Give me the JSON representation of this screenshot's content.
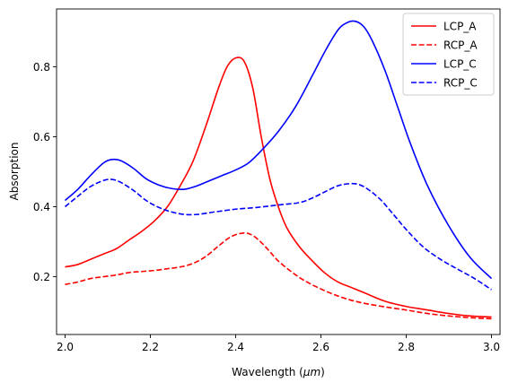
{
  "chart_data": {
    "type": "line",
    "title": "",
    "xlabel": "Wavelength (",
    "xlabel_unit": "μm",
    "xlabel_close": ")",
    "ylabel": "Absorption",
    "xlim": [
      1.98,
      3.02
    ],
    "ylim": [
      0.035,
      0.965
    ],
    "xticks": [
      2.0,
      2.2,
      2.4,
      2.6,
      2.8,
      3.0
    ],
    "xtick_labels": [
      "2.0",
      "2.2",
      "2.4",
      "2.6",
      "2.8",
      "3.0"
    ],
    "yticks": [
      0.2,
      0.4,
      0.6,
      0.8
    ],
    "ytick_labels": [
      "0.2",
      "0.4",
      "0.6",
      "0.8"
    ],
    "grid": false,
    "legend_position": "top-right",
    "series": [
      {
        "name": "LCP_A",
        "color": "#ff0000",
        "dash": "solid",
        "x": [
          2.0,
          2.03,
          2.06,
          2.09,
          2.12,
          2.15,
          2.18,
          2.21,
          2.24,
          2.27,
          2.3,
          2.33,
          2.36,
          2.38,
          2.4,
          2.42,
          2.44,
          2.46,
          2.48,
          2.5,
          2.52,
          2.55,
          2.58,
          2.61,
          2.64,
          2.67,
          2.7,
          2.75,
          2.8,
          2.85,
          2.9,
          2.95,
          3.0
        ],
        "y": [
          0.228,
          0.235,
          0.25,
          0.265,
          0.28,
          0.305,
          0.33,
          0.36,
          0.4,
          0.46,
          0.53,
          0.63,
          0.74,
          0.8,
          0.825,
          0.815,
          0.74,
          0.6,
          0.48,
          0.4,
          0.34,
          0.285,
          0.245,
          0.21,
          0.185,
          0.17,
          0.155,
          0.13,
          0.115,
          0.105,
          0.095,
          0.088,
          0.085
        ]
      },
      {
        "name": "RCP_A",
        "color": "#ff0000",
        "dash": "dashed",
        "x": [
          2.0,
          2.03,
          2.06,
          2.09,
          2.12,
          2.15,
          2.18,
          2.21,
          2.24,
          2.27,
          2.3,
          2.33,
          2.36,
          2.39,
          2.42,
          2.44,
          2.46,
          2.48,
          2.5,
          2.53,
          2.56,
          2.6,
          2.64,
          2.68,
          2.72,
          2.76,
          2.8,
          2.85,
          2.9,
          2.95,
          3.0
        ],
        "y": [
          0.178,
          0.185,
          0.195,
          0.2,
          0.205,
          0.212,
          0.215,
          0.218,
          0.223,
          0.228,
          0.238,
          0.258,
          0.288,
          0.315,
          0.325,
          0.318,
          0.298,
          0.272,
          0.245,
          0.215,
          0.19,
          0.165,
          0.145,
          0.13,
          0.12,
          0.112,
          0.105,
          0.095,
          0.088,
          0.083,
          0.08
        ]
      },
      {
        "name": "LCP_C",
        "color": "#0000ff",
        "dash": "solid",
        "x": [
          2.0,
          2.03,
          2.06,
          2.09,
          2.11,
          2.13,
          2.16,
          2.19,
          2.22,
          2.25,
          2.28,
          2.31,
          2.34,
          2.37,
          2.4,
          2.43,
          2.46,
          2.5,
          2.54,
          2.58,
          2.61,
          2.64,
          2.66,
          2.68,
          2.7,
          2.72,
          2.75,
          2.78,
          2.81,
          2.85,
          2.9,
          2.95,
          3.0
        ],
        "y": [
          0.418,
          0.45,
          0.49,
          0.525,
          0.535,
          0.532,
          0.51,
          0.48,
          0.462,
          0.452,
          0.45,
          0.46,
          0.475,
          0.49,
          0.505,
          0.525,
          0.56,
          0.615,
          0.685,
          0.775,
          0.845,
          0.905,
          0.925,
          0.93,
          0.915,
          0.875,
          0.79,
          0.685,
          0.58,
          0.46,
          0.345,
          0.255,
          0.195
        ]
      },
      {
        "name": "RCP_C",
        "color": "#0000ff",
        "dash": "dashed",
        "x": [
          2.0,
          2.03,
          2.06,
          2.09,
          2.11,
          2.13,
          2.16,
          2.19,
          2.22,
          2.25,
          2.28,
          2.31,
          2.35,
          2.4,
          2.45,
          2.5,
          2.55,
          2.58,
          2.61,
          2.64,
          2.67,
          2.69,
          2.71,
          2.74,
          2.77,
          2.8,
          2.84,
          2.88,
          2.92,
          2.96,
          3.0
        ],
        "y": [
          0.4,
          0.43,
          0.458,
          0.475,
          0.478,
          0.47,
          0.447,
          0.418,
          0.398,
          0.385,
          0.378,
          0.378,
          0.385,
          0.393,
          0.398,
          0.405,
          0.412,
          0.425,
          0.443,
          0.46,
          0.466,
          0.463,
          0.45,
          0.42,
          0.378,
          0.335,
          0.285,
          0.25,
          0.222,
          0.195,
          0.163
        ]
      }
    ]
  }
}
